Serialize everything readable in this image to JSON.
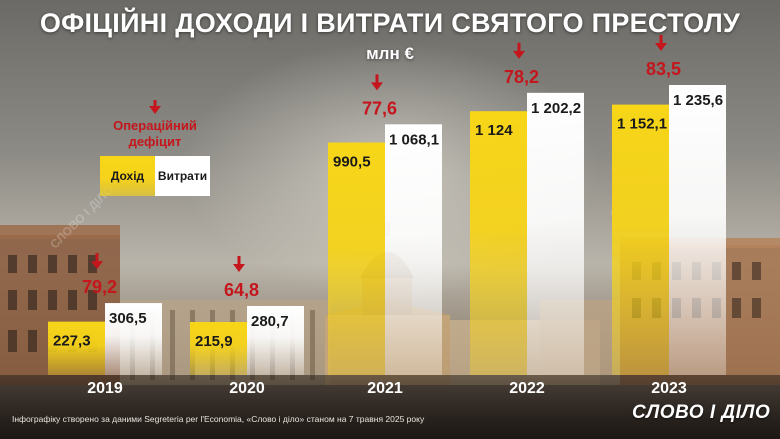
{
  "title": "ОФІЦІЙНІ ДОХОДИ І ВИТРАТИ СВЯТОГО ПРЕСТОЛУ",
  "unit": "млн €",
  "legend": {
    "deficit_label": "Операційний дефіцит",
    "income_label": "Дохід",
    "expense_label": "Витрати"
  },
  "footnote": "Інфографіку створено за даними Segreteria per l'Economia, «Слово і діло» станом на 7 травня 2025 року",
  "brand": "СЛОВО І ДІЛО",
  "watermark": "СЛОВО І ДІЛО",
  "colors": {
    "income": "#f6d31a",
    "expense": "#ffffff",
    "deficit": "#c4161c",
    "text_dark": "#1a1a1a"
  },
  "chart_data": {
    "type": "bar",
    "title": "ОФІЦІЙНІ ДОХОДИ І ВИТРАТИ СВЯТОГО ПРЕСТОЛУ",
    "ylabel": "млн €",
    "categories": [
      "2019",
      "2020",
      "2021",
      "2022",
      "2023"
    ],
    "series": [
      {
        "name": "Дохід",
        "values": [
          227.3,
          215.9,
          990.5,
          1124,
          1152.1
        ],
        "labels": [
          "227,3",
          "215,9",
          "990,5",
          "1 124",
          "1 152,1"
        ]
      },
      {
        "name": "Витрати",
        "values": [
          306.5,
          280.7,
          1068.1,
          1202.2,
          1235.6
        ],
        "labels": [
          "306,5",
          "280,7",
          "1 068,1",
          "1 202,2",
          "1 235,6"
        ]
      }
    ],
    "deficit": {
      "name": "Операційний дефіцит",
      "values": [
        79.2,
        64.8,
        77.6,
        78.2,
        83.5
      ],
      "labels": [
        "79,2",
        "64,8",
        "77,6",
        "78,2",
        "83,5"
      ]
    },
    "ylim": [
      0,
      1300
    ]
  }
}
